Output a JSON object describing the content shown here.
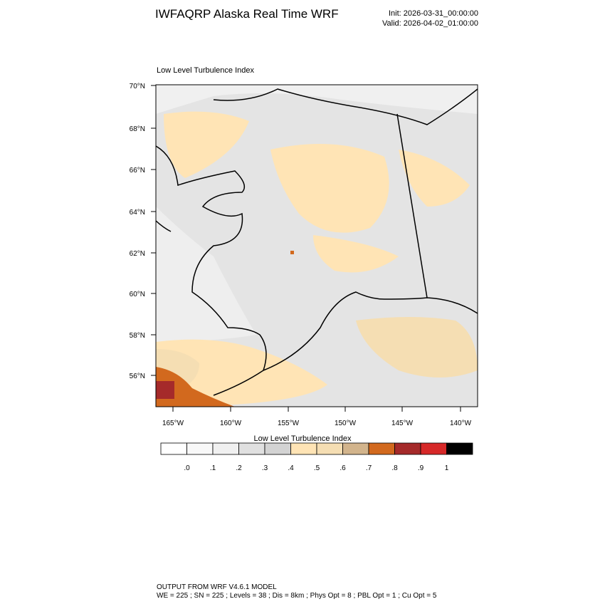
{
  "header": {
    "title": "IWFAQRP Alaska Real Time WRF",
    "init": "Init: 2026-03-31_00:00:00",
    "valid": "Valid: 2026-04-02_01:00:00"
  },
  "map": {
    "title": "Low Level Turbulence Index",
    "lat_labels": [
      "70°N",
      "68°N",
      "66°N",
      "64°N",
      "62°N",
      "60°N",
      "58°N",
      "56°N"
    ],
    "lon_labels": [
      "165°W",
      "160°W",
      "155°W",
      "150°W",
      "145°W",
      "140°W"
    ]
  },
  "colorbar": {
    "title": "Low Level Turbulence Index",
    "colors": [
      "#ffffff",
      "#f8f8f8",
      "#f0f0f0",
      "#e0e0e0",
      "#d3d3d3",
      "#ffe4b5",
      "#f5deb3",
      "#d2b48c",
      "#d2691e",
      "#a52a2a",
      "#d62828",
      "#000000"
    ],
    "labels": [
      ".0",
      ".1",
      ".2",
      ".3",
      ".4",
      ".5",
      ".6",
      ".7",
      ".8",
      ".9",
      "1"
    ]
  },
  "footer": {
    "line1": "OUTPUT FROM WRF V4.6.1 MODEL",
    "line2": "WE = 225 ; SN = 225 ; Levels = 38 ; Dis = 8km ; Phys Opt = 8 ; PBL Opt = 1 ; Cu Opt = 5"
  }
}
